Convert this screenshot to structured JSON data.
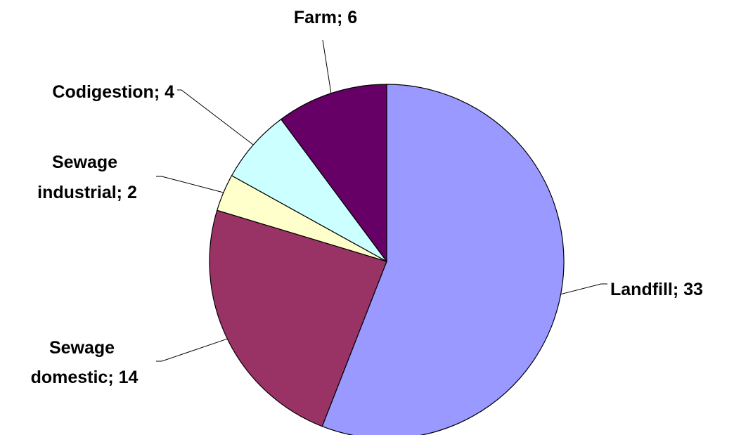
{
  "chart_data": {
    "type": "pie",
    "title": "",
    "slices": [
      {
        "label": "Landfill; 33",
        "line1": "Landfill; 33",
        "line2": "",
        "category": "Landfill",
        "value": 33,
        "color": "#9999FF"
      },
      {
        "label": "Sewage domestic; 14",
        "line1": "Sewage",
        "line2": "domestic; 14",
        "category": "Sewage domestic",
        "value": 14,
        "color": "#993366"
      },
      {
        "label": "Sewage industrial; 2",
        "line1": "Sewage",
        "line2": "industrial; 2",
        "category": "Sewage industrial",
        "value": 2,
        "color": "#FFFFCC"
      },
      {
        "label": "Codigestion; 4",
        "line1": "Codigestion; 4",
        "line2": "",
        "category": "Codigestion",
        "value": 4,
        "color": "#CCFFFF"
      },
      {
        "label": "Farm; 6",
        "line1": "Farm; 6",
        "line2": "",
        "category": "Farm",
        "value": 6,
        "color": "#660066"
      }
    ],
    "start_angle_deg": 0,
    "direction": "clockwise",
    "legend": "none"
  }
}
